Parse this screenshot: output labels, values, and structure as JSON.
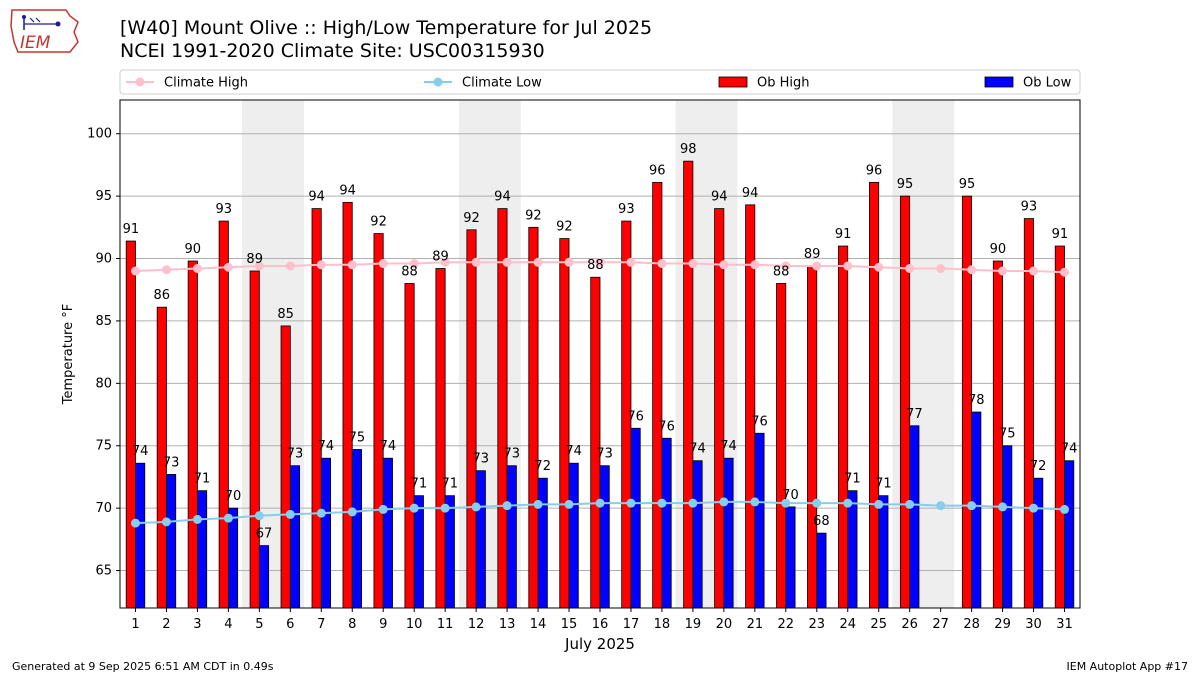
{
  "header": {
    "title": "[W40] Mount Olive :: High/Low Temperature for Jul 2025",
    "subtitle": "NCEI 1991-2020 Climate Site: USC00315930",
    "logo_text": "IEM"
  },
  "footer": {
    "generated": "Generated at 9 Sep 2025 6:51 AM CDT in 0.49s",
    "app": "IEM Autoplot App #17"
  },
  "colors": {
    "climate_high": "#ffc0cb",
    "climate_low": "#87ceeb",
    "ob_high": "#ff0000",
    "ob_low": "#0000ff",
    "weekend_shade": "#eeeeee",
    "grid": "#b0b0b0"
  },
  "chart_data": {
    "type": "bar",
    "title": "[W40] Mount Olive :: High/Low Temperature for Jul 2025",
    "xlabel": "July 2025",
    "ylabel": "Temperature °F",
    "ylim": [
      62,
      102.7
    ],
    "yticks": [
      65,
      70,
      75,
      80,
      85,
      90,
      95,
      100
    ],
    "grid": true,
    "legend_position": "top",
    "categories": [
      "1",
      "2",
      "3",
      "4",
      "5",
      "6",
      "7",
      "8",
      "9",
      "10",
      "11",
      "12",
      "13",
      "14",
      "15",
      "16",
      "17",
      "18",
      "19",
      "20",
      "21",
      "22",
      "23",
      "24",
      "25",
      "26",
      "27",
      "28",
      "29",
      "30",
      "31"
    ],
    "shaded_days": [
      [
        5,
        6
      ],
      [
        12,
        13
      ],
      [
        19,
        20
      ],
      [
        26,
        27
      ]
    ],
    "series": [
      {
        "name": "Ob High",
        "kind": "bar",
        "values": [
          91.4,
          86.1,
          89.8,
          93.0,
          89.0,
          84.6,
          94.0,
          94.5,
          92.0,
          88.0,
          89.2,
          92.3,
          94.0,
          92.5,
          91.6,
          88.5,
          93.0,
          96.1,
          97.8,
          94.0,
          94.3,
          88.0,
          89.4,
          91.0,
          96.1,
          95.0,
          null,
          95.0,
          89.8,
          93.2,
          91.0
        ],
        "labels": [
          "91",
          "86",
          "90",
          "93",
          "89",
          "85",
          "94",
          "94",
          "92",
          "88",
          "89",
          "92",
          "94",
          "92",
          "92",
          "88",
          "93",
          "96",
          "98",
          "94",
          "94",
          "88",
          "89",
          "91",
          "96",
          "95",
          "",
          "95",
          "90",
          "93",
          "91"
        ]
      },
      {
        "name": "Ob Low",
        "kind": "bar",
        "values": [
          73.6,
          72.7,
          71.4,
          70.0,
          67.0,
          73.4,
          74.0,
          74.7,
          74.0,
          71.0,
          71.0,
          73.0,
          73.4,
          72.4,
          73.6,
          73.4,
          76.4,
          75.6,
          73.8,
          74.0,
          76.0,
          70.1,
          68.0,
          71.4,
          71.0,
          76.6,
          null,
          77.7,
          75.0,
          72.4,
          73.8
        ],
        "labels": [
          "74",
          "73",
          "71",
          "70",
          "67",
          "73",
          "74",
          "75",
          "74",
          "71",
          "71",
          "73",
          "73",
          "72",
          "74",
          "73",
          "76",
          "76",
          "74",
          "74",
          "76",
          "70",
          "68",
          "71",
          "71",
          "77",
          "",
          "78",
          "75",
          "72",
          "74"
        ]
      },
      {
        "name": "Climate High",
        "kind": "line",
        "values": [
          89.0,
          89.1,
          89.2,
          89.3,
          89.4,
          89.4,
          89.5,
          89.5,
          89.6,
          89.6,
          89.7,
          89.7,
          89.7,
          89.7,
          89.7,
          89.7,
          89.7,
          89.6,
          89.6,
          89.5,
          89.5,
          89.4,
          89.4,
          89.4,
          89.3,
          89.2,
          89.2,
          89.1,
          89.0,
          89.0,
          88.9
        ]
      },
      {
        "name": "Climate Low",
        "kind": "line",
        "values": [
          68.8,
          68.9,
          69.1,
          69.2,
          69.4,
          69.5,
          69.6,
          69.7,
          69.9,
          70.0,
          70.0,
          70.1,
          70.2,
          70.3,
          70.3,
          70.4,
          70.4,
          70.4,
          70.4,
          70.5,
          70.5,
          70.4,
          70.4,
          70.4,
          70.3,
          70.3,
          70.2,
          70.2,
          70.1,
          70.0,
          69.9
        ]
      }
    ]
  }
}
